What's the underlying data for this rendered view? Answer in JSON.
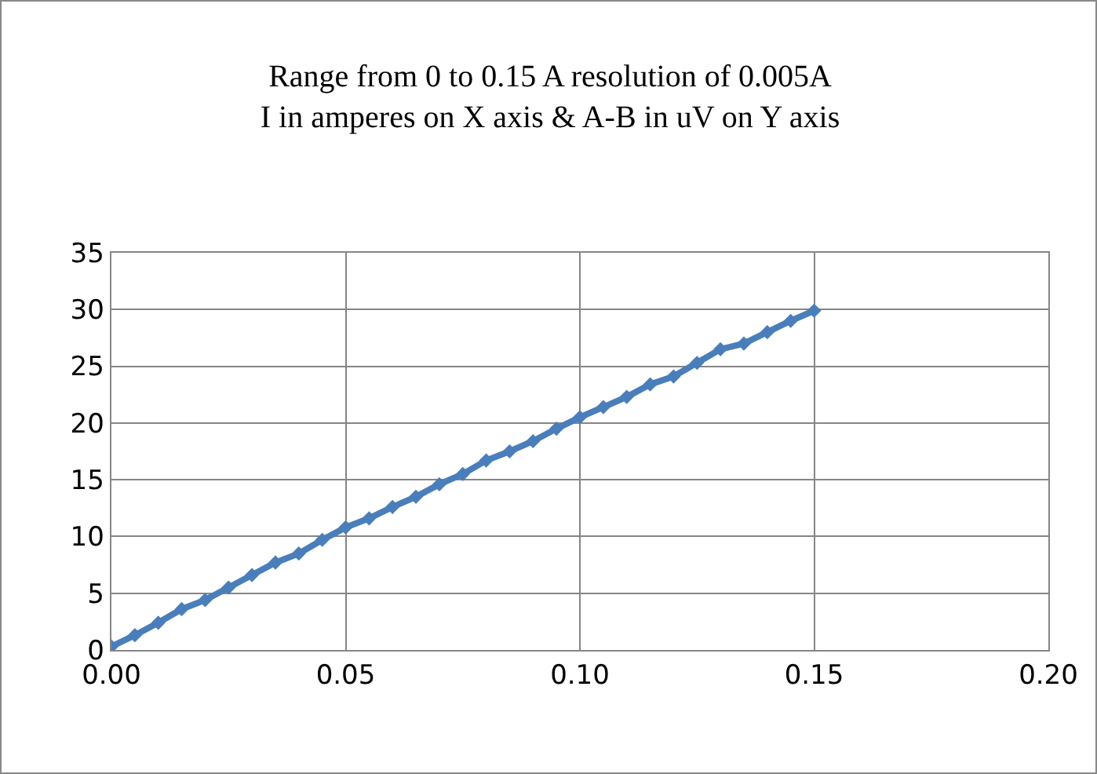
{
  "chart_data": {
    "type": "line",
    "title": "Range from 0 to 0.15 A resolution of 0.005A\nI in amperes on X axis & A-B in uV on Y axis",
    "x": [
      0,
      0.005,
      0.01,
      0.015,
      0.02,
      0.025,
      0.03,
      0.035,
      0.04,
      0.045,
      0.05,
      0.055,
      0.06,
      0.065,
      0.07,
      0.075,
      0.08,
      0.085,
      0.09,
      0.095,
      0.1,
      0.105,
      0.11,
      0.115,
      0.12,
      0.125,
      0.13,
      0.135,
      0.14,
      0.145,
      0.15
    ],
    "series": [
      {
        "color": "#4a7ebb",
        "values": [
          0.3,
          1.3,
          2.4,
          3.6,
          4.4,
          5.5,
          6.6,
          7.7,
          8.5,
          9.7,
          10.8,
          11.6,
          12.6,
          13.5,
          14.6,
          15.5,
          16.7,
          17.5,
          18.4,
          19.5,
          20.5,
          21.4,
          22.3,
          23.4,
          24.1,
          25.3,
          26.5,
          27,
          28,
          29,
          29.9
        ]
      }
    ],
    "xlim": [
      0,
      0.2
    ],
    "xticks": [
      {
        "value": 0,
        "label": "0.00"
      },
      {
        "value": 0.05,
        "label": "0.05"
      },
      {
        "value": 0.1,
        "label": "0.10"
      },
      {
        "value": 0.15,
        "label": "0.15"
      },
      {
        "value": 0.2,
        "label": "0.20"
      }
    ],
    "ylim": [
      0,
      35
    ],
    "yticks": [
      0,
      5,
      10,
      15,
      20,
      25,
      30,
      35
    ],
    "grid": true,
    "marker": "diamond",
    "line_style": "solid"
  }
}
